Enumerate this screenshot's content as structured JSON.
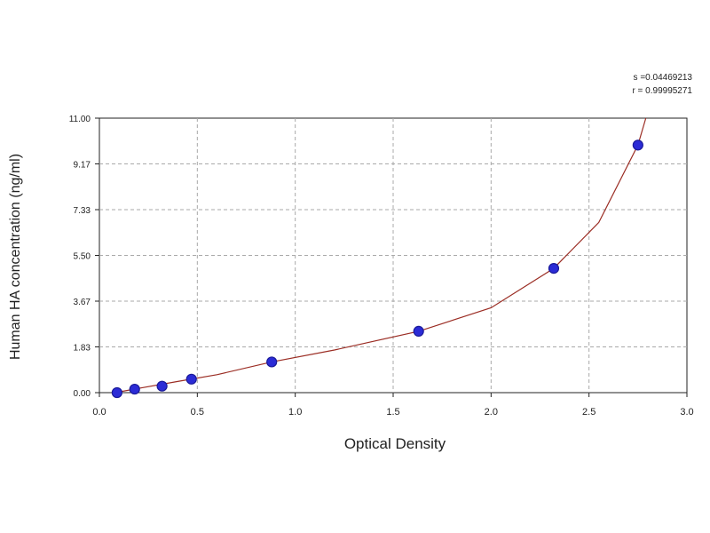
{
  "chart_data": {
    "type": "scatter",
    "xlabel": "Optical Density",
    "ylabel": "Human HA concentration (ng/ml)",
    "xlim": [
      0.0,
      3.0
    ],
    "ylim": [
      0.0,
      11.0
    ],
    "x_ticks": [
      "0.0",
      "0.5",
      "1.0",
      "1.5",
      "2.0",
      "2.5",
      "3.0"
    ],
    "y_ticks": [
      "0.00",
      "1.83",
      "3.67",
      "5.50",
      "7.33",
      "9.17",
      "11.00"
    ],
    "grid": true,
    "stats": {
      "s_label": "s =0.04469213",
      "r_label": "r = 0.99995271"
    },
    "series": [
      {
        "points": [
          {
            "x": 0.09,
            "y": 0.0
          },
          {
            "x": 0.18,
            "y": 0.14
          },
          {
            "x": 0.32,
            "y": 0.26
          },
          {
            "x": 0.47,
            "y": 0.54
          },
          {
            "x": 0.88,
            "y": 1.23
          },
          {
            "x": 1.63,
            "y": 2.46
          },
          {
            "x": 2.32,
            "y": 4.98
          },
          {
            "x": 2.75,
            "y": 9.92
          }
        ]
      }
    ],
    "fit_curve": {
      "points": [
        {
          "x": 0.08,
          "y": 0.0
        },
        {
          "x": 0.2,
          "y": 0.17
        },
        {
          "x": 0.4,
          "y": 0.45
        },
        {
          "x": 0.6,
          "y": 0.72
        },
        {
          "x": 0.88,
          "y": 1.23
        },
        {
          "x": 1.2,
          "y": 1.71
        },
        {
          "x": 1.63,
          "y": 2.46
        },
        {
          "x": 2.0,
          "y": 3.4
        },
        {
          "x": 2.32,
          "y": 4.98
        },
        {
          "x": 2.55,
          "y": 6.82
        },
        {
          "x": 2.75,
          "y": 9.92
        },
        {
          "x": 2.79,
          "y": 11.0
        }
      ]
    },
    "colors": {
      "marker_fill": "#2b2bd6",
      "marker_edge": "#1a1a99",
      "curve": "#9b2d24",
      "grid": "#a9a9a9",
      "axis": "#222222"
    }
  }
}
